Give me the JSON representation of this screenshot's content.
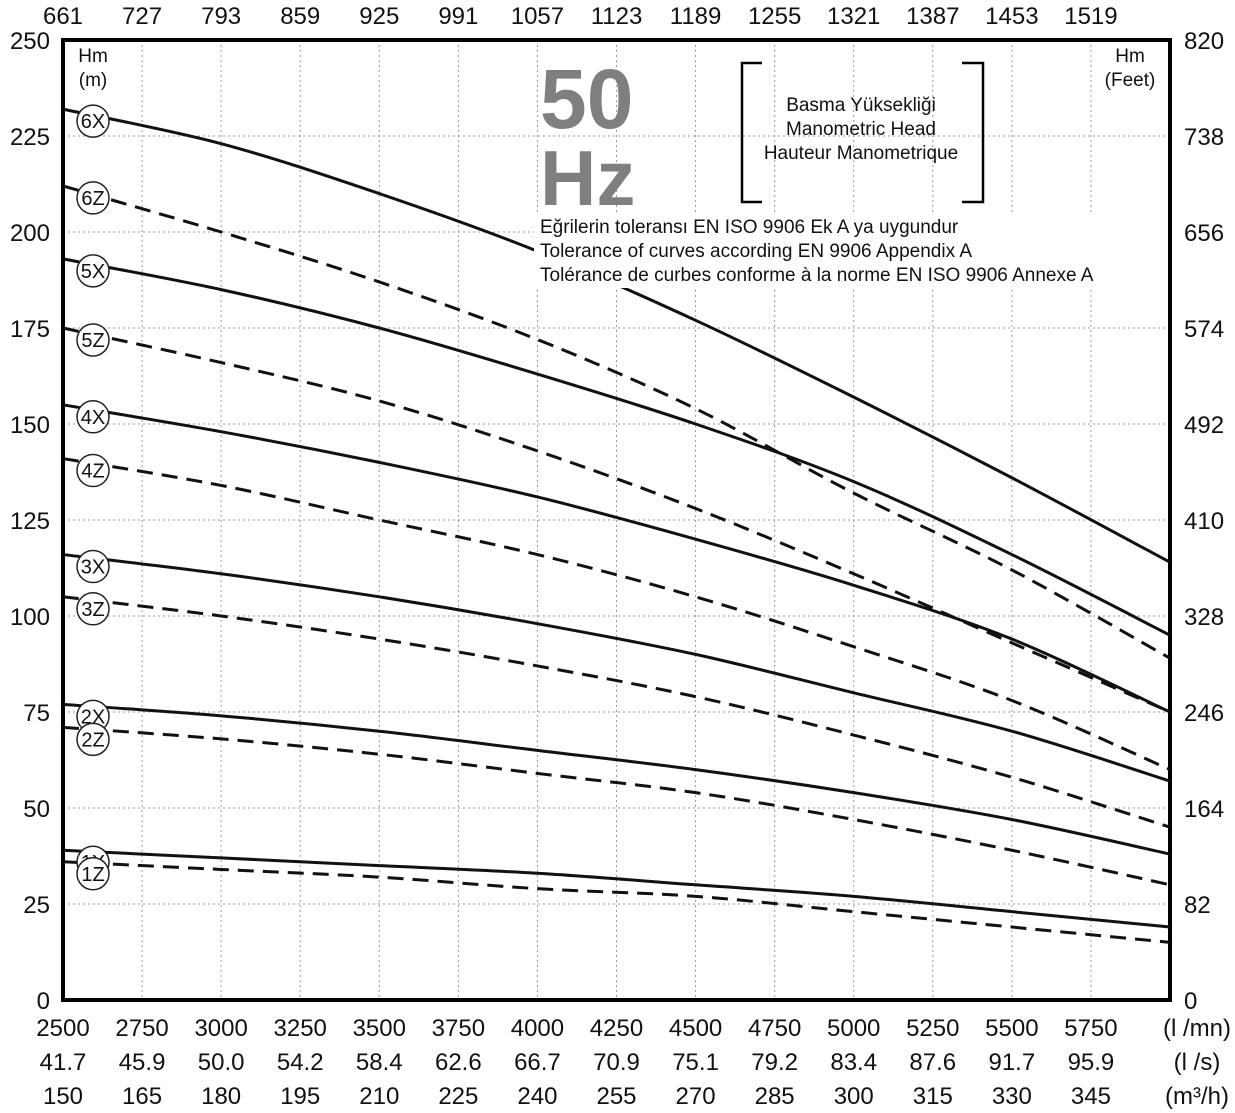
{
  "chart_data": {
    "type": "line",
    "title_value": "50",
    "title_unit": "Hz",
    "legend_lines": [
      "Basma Yüksekliği",
      "Manometric Head",
      "Hauteur Manometrique"
    ],
    "tolerance_lines": [
      "Eğrilerin toleransı EN ISO 9906 Ek A ya uygundur",
      "Tolerance of curves according EN 9906 Appendix A",
      "Tolérance de curbes conforme à la norme EN ISO 9906 Annexe A"
    ],
    "y_left_label": [
      "Hm",
      "(m)"
    ],
    "y_right_label": [
      "Hm",
      "(Feet)"
    ],
    "xlim": [
      2500,
      6000
    ],
    "ylim": [
      0,
      250
    ],
    "grid": true,
    "x_ticks_lmin": [
      "2500",
      "2750",
      "3000",
      "3250",
      "3500",
      "3750",
      "4000",
      "4250",
      "4500",
      "4750",
      "5000",
      "5250",
      "5500",
      "5750"
    ],
    "x_ticks_ls": [
      "41.7",
      "45.9",
      "50.0",
      "54.2",
      "58.4",
      "62.6",
      "66.7",
      "70.9",
      "75.1",
      "79.2",
      "83.4",
      "87.6",
      "91.7",
      "95.9"
    ],
    "x_ticks_m3h": [
      "150",
      "165",
      "180",
      "195",
      "210",
      "225",
      "240",
      "255",
      "270",
      "285",
      "300",
      "315",
      "330",
      "345"
    ],
    "x_ticks_top": [
      "661",
      "727",
      "793",
      "859",
      "925",
      "991",
      "1057",
      "1123",
      "1189",
      "1255",
      "1321",
      "1387",
      "1453",
      "1519"
    ],
    "x_units": [
      "(l /mn)",
      "(l /s)",
      "(m³/h)"
    ],
    "y_ticks_left": [
      "0",
      "25",
      "50",
      "75",
      "100",
      "125",
      "150",
      "175",
      "200",
      "225",
      "250"
    ],
    "y_ticks_right": [
      "0",
      "82",
      "164",
      "246",
      "328",
      "410",
      "492",
      "574",
      "656",
      "738",
      "820"
    ],
    "x": [
      2500,
      3000,
      3500,
      4000,
      4500,
      5000,
      5500,
      6000
    ],
    "series": [
      {
        "name": "6X",
        "style": "solid",
        "values": [
          232,
          223,
          210,
          195,
          177,
          157,
          136,
          114
        ]
      },
      {
        "name": "6Z",
        "style": "dashed",
        "values": [
          212,
          200,
          187,
          172,
          154,
          132,
          112,
          89
        ]
      },
      {
        "name": "5X",
        "style": "solid",
        "values": [
          193,
          185,
          175,
          163,
          150,
          135,
          116,
          95
        ]
      },
      {
        "name": "5Z",
        "style": "dashed",
        "values": [
          175,
          166,
          156,
          143,
          128,
          111,
          93,
          75
        ]
      },
      {
        "name": "4X",
        "style": "solid",
        "values": [
          155,
          148,
          140,
          131,
          120,
          108,
          94,
          75
        ]
      },
      {
        "name": "4Z",
        "style": "dashed",
        "values": [
          141,
          134,
          125,
          116,
          105,
          92,
          78,
          60
        ]
      },
      {
        "name": "3X",
        "style": "solid",
        "values": [
          116,
          111,
          105,
          98,
          90,
          80,
          70,
          57
        ]
      },
      {
        "name": "3Z",
        "style": "dashed",
        "values": [
          105,
          100,
          94,
          87,
          79,
          69,
          58,
          45
        ]
      },
      {
        "name": "2X",
        "style": "solid",
        "values": [
          77,
          74,
          70,
          65,
          60,
          54,
          47,
          38
        ]
      },
      {
        "name": "2Z",
        "style": "dashed",
        "values": [
          71,
          68,
          64,
          59,
          54,
          47,
          39,
          30
        ]
      },
      {
        "name": "1X",
        "style": "solid",
        "values": [
          39,
          37,
          35,
          33,
          30,
          27,
          23,
          19
        ]
      },
      {
        "name": "1Z",
        "style": "dashed",
        "values": [
          36,
          34,
          32,
          29,
          27,
          23,
          19,
          15
        ]
      }
    ]
  }
}
